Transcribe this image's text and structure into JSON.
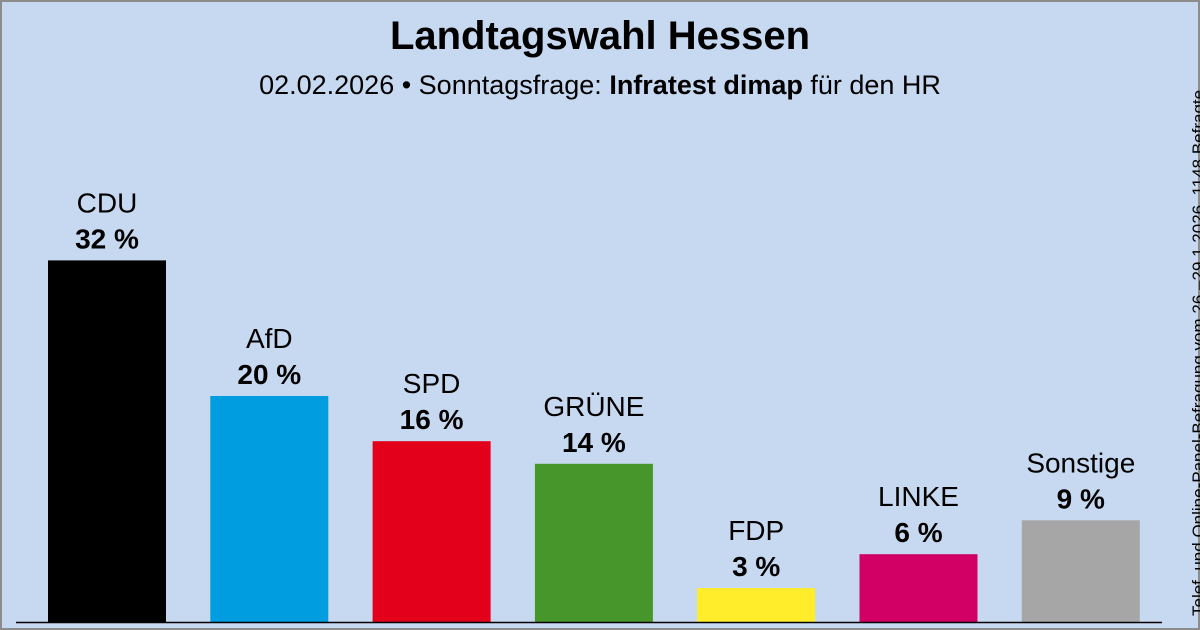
{
  "header": {
    "title": "Landtagswahl Hessen",
    "date": "02.02.2026",
    "sep": " • Sonntagsfrage: ",
    "institute": "Infratest dimap",
    "client": " für den HR"
  },
  "note": "Telef. und Online-Panel-Befragung vom 26.–29.1.2026, 1148 Befragte",
  "chart_data": {
    "type": "bar",
    "title": "Landtagswahl Hessen",
    "categories": [
      "CDU",
      "AfD",
      "SPD",
      "GRÜNE",
      "FDP",
      "LINKE",
      "Sonstige"
    ],
    "values": [
      32,
      20,
      16,
      14,
      3,
      6,
      9
    ],
    "value_labels": [
      "32 %",
      "20 %",
      "16 %",
      "14 %",
      "3 %",
      "6 %",
      "9 %"
    ],
    "colors": [
      "#000000",
      "#009ee0",
      "#e3001b",
      "#46962b",
      "#ffed2b",
      "#d20064",
      "#a6a6a6"
    ],
    "unit": "%"
  }
}
